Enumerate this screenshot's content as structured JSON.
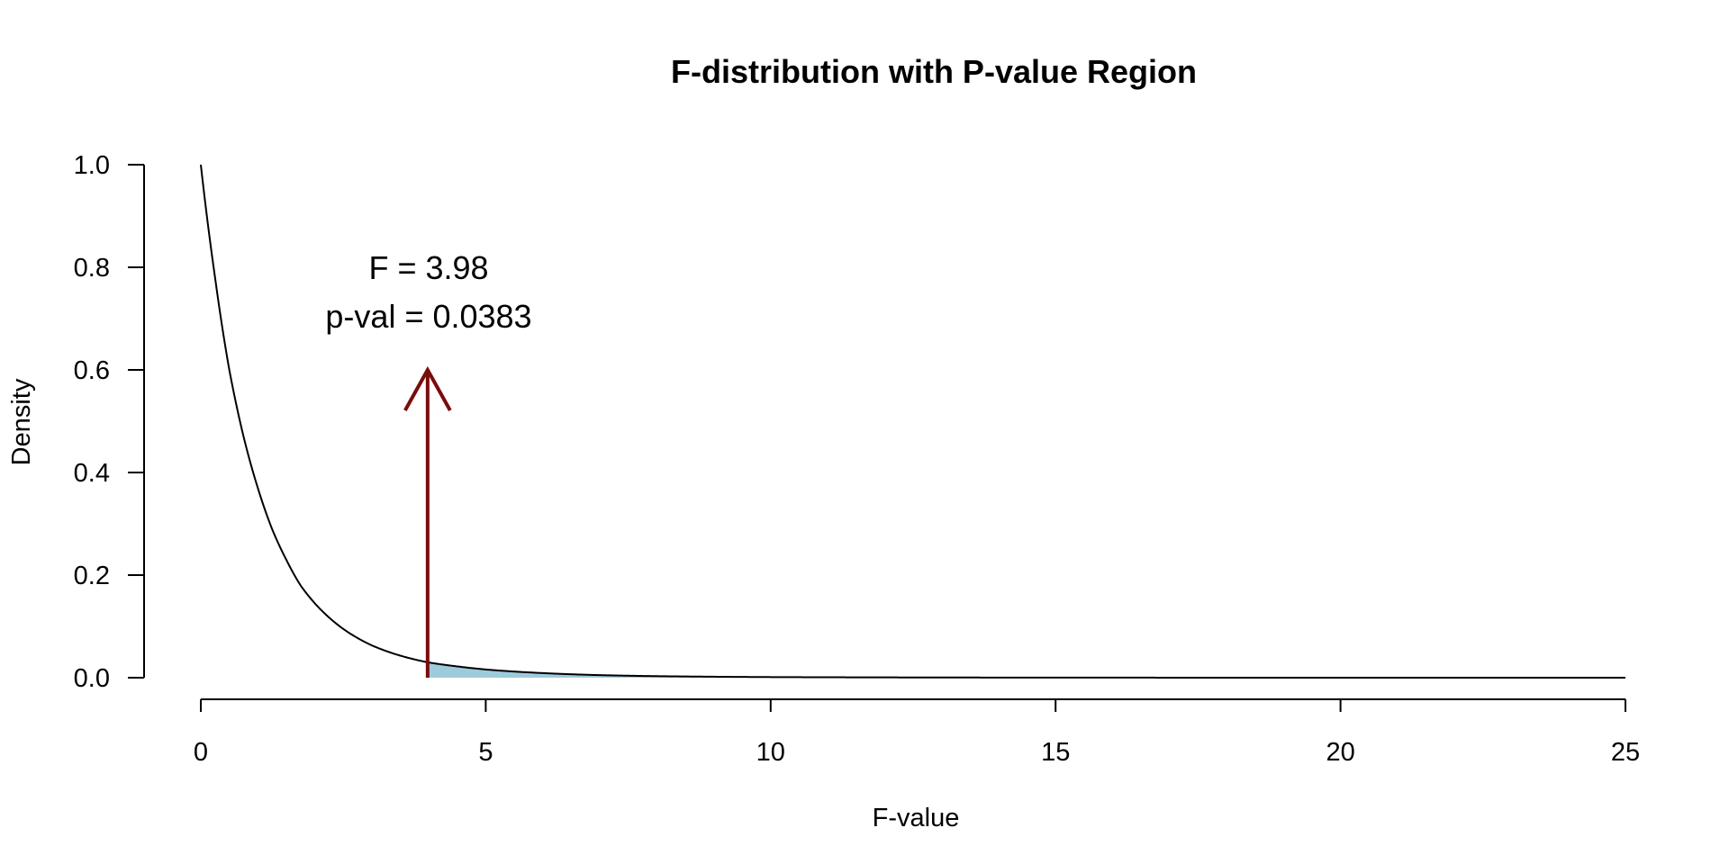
{
  "chart_data": {
    "type": "area",
    "title": "F-distribution with P-value Region",
    "xlabel": "F-value",
    "ylabel": "Density",
    "xlim": [
      0,
      25
    ],
    "ylim": [
      0,
      1
    ],
    "x_ticks": [
      0,
      5,
      10,
      15,
      20,
      25
    ],
    "x_tick_labels": [
      "0",
      "5",
      "10",
      "15",
      "20",
      "25"
    ],
    "y_ticks": [
      0,
      0.2,
      0.4,
      0.6,
      0.8,
      1.0
    ],
    "y_tick_labels": [
      "0.0",
      "0.2",
      "0.4",
      "0.6",
      "0.8",
      "1.0"
    ],
    "grid": false,
    "series": [
      {
        "x": [
          0,
          0.25,
          0.5,
          0.75,
          1,
          1.25,
          1.5,
          1.75,
          2,
          2.5,
          3,
          3.5,
          3.98,
          4.5,
          5,
          6,
          7,
          8,
          10,
          12,
          15,
          20,
          25
        ],
        "y": [
          1.0,
          0.78,
          0.6,
          0.47,
          0.37,
          0.29,
          0.23,
          0.18,
          0.145,
          0.095,
          0.063,
          0.043,
          0.03,
          0.022,
          0.016,
          0.009,
          0.005,
          0.003,
          0.0012,
          0.0006,
          0.0002,
          4e-05,
          1e-05
        ],
        "color": "#000000"
      }
    ],
    "shaded_region": {
      "from": 3.98,
      "to": 25,
      "color": "#9ecbdc"
    },
    "arrow": {
      "x": 3.98,
      "y_from": 0,
      "y_to": 0.6,
      "color": "#7a0c0c"
    },
    "annotations": [
      "F = 3.98",
      "p-val = 0.0383"
    ]
  }
}
